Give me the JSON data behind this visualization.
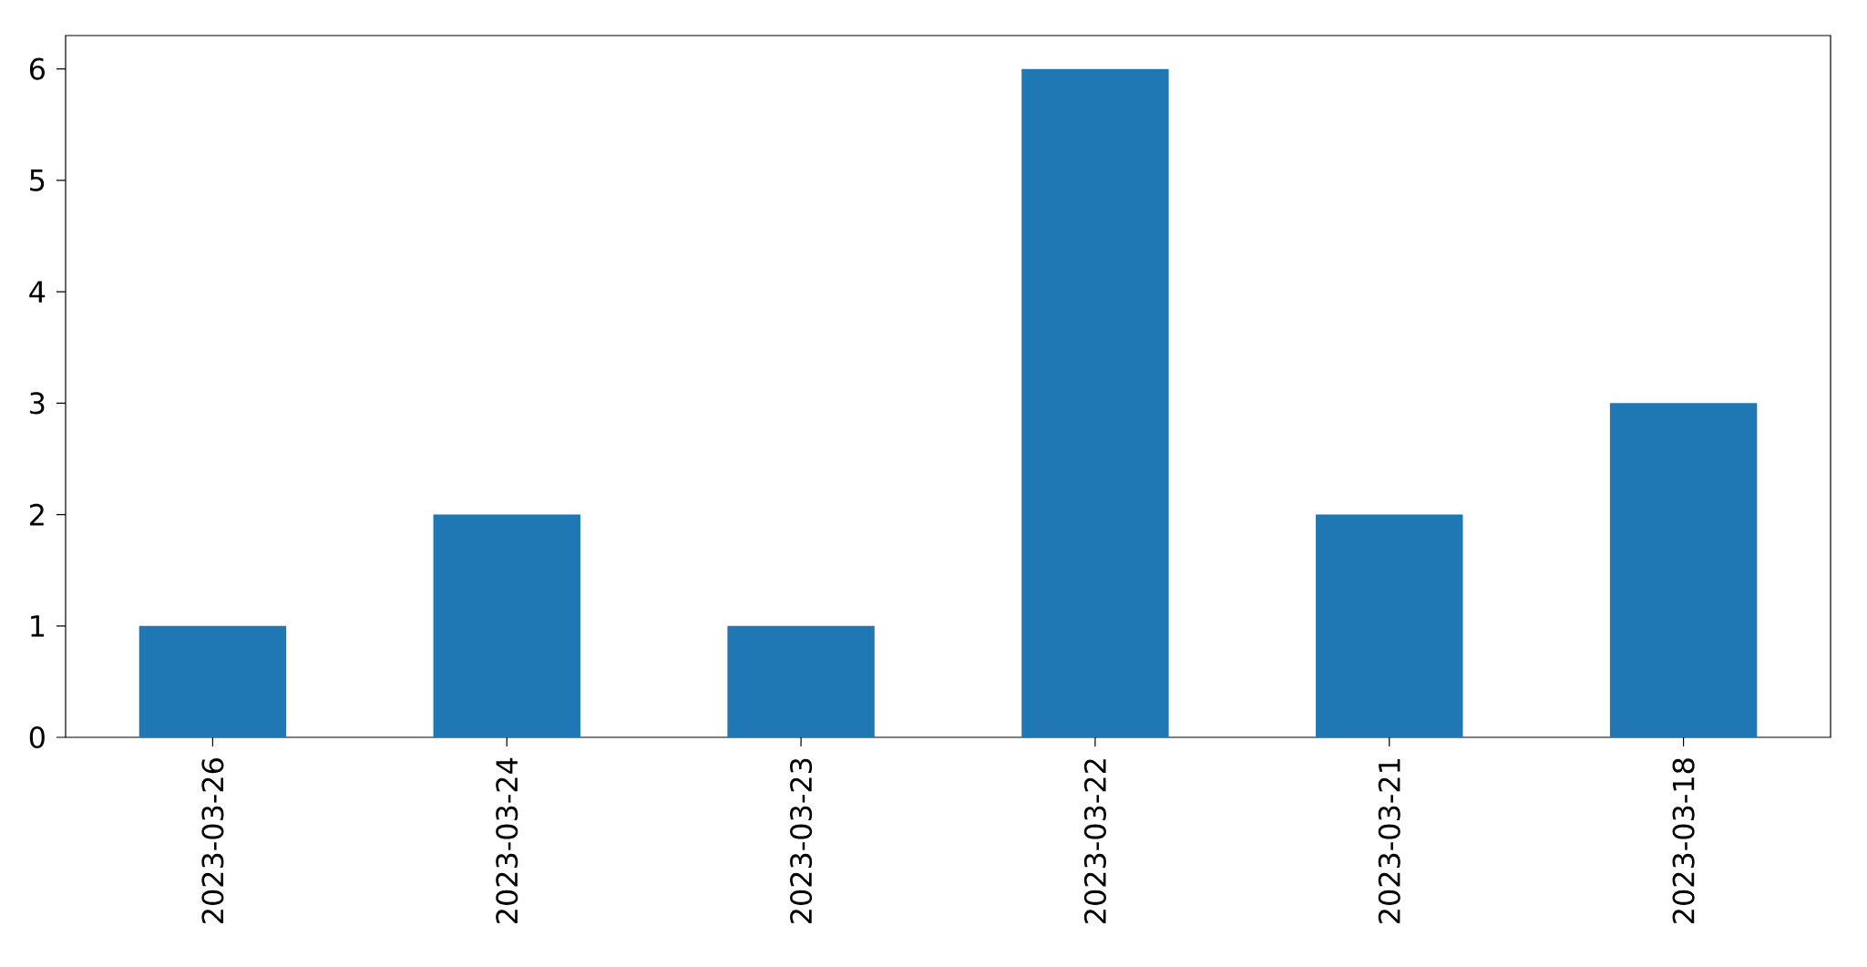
{
  "chart_data": {
    "type": "bar",
    "categories": [
      "2023-03-26",
      "2023-03-24",
      "2023-03-23",
      "2023-03-22",
      "2023-03-21",
      "2023-03-18"
    ],
    "values": [
      1,
      2,
      1,
      6,
      2,
      3
    ],
    "color": "#1f77b4",
    "ylim": [
      0,
      6.3
    ],
    "yticks": [
      0,
      1,
      2,
      3,
      4,
      5,
      6
    ]
  }
}
